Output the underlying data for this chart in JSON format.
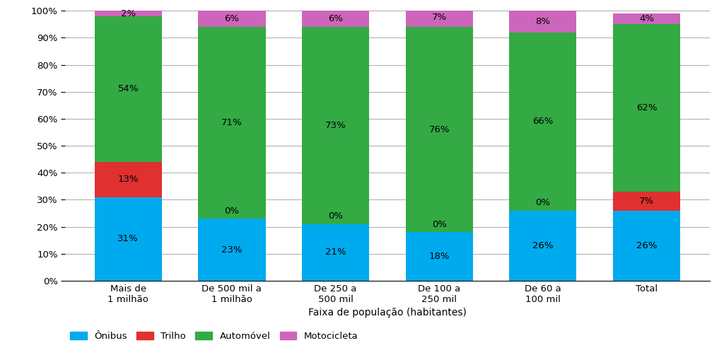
{
  "categories": [
    "Mais de\n1 milhão",
    "De 500 mil a\n1 milhão",
    "De 250 a\n500 mil",
    "De 100 a\n250 mil",
    "De 60 a\n100 mil",
    "Total"
  ],
  "onibus": [
    31,
    23,
    21,
    18,
    26,
    26
  ],
  "trilho": [
    13,
    0,
    0,
    0,
    0,
    7
  ],
  "automovel": [
    54,
    71,
    73,
    76,
    66,
    62
  ],
  "motocicleta": [
    2,
    6,
    6,
    7,
    8,
    4
  ],
  "colors": {
    "onibus": "#00AAEE",
    "trilho": "#E03030",
    "automovel": "#33AA44",
    "motocicleta": "#CC66BB"
  },
  "legend_labels": [
    "Ônibus",
    "Trilho",
    "Automóvel",
    "Motocicleta"
  ],
  "xlabel": "Faixa de população (habitantes)",
  "ylim": [
    0,
    100
  ],
  "yticks": [
    0,
    10,
    20,
    30,
    40,
    50,
    60,
    70,
    80,
    90,
    100
  ],
  "ytick_labels": [
    "0%",
    "10%",
    "20%",
    "30%",
    "40%",
    "50%",
    "60%",
    "70%",
    "80%",
    "90%",
    "100%"
  ],
  "bar_width": 0.65,
  "background_color": "#FFFFFF",
  "grid_color": "#AAAAAA",
  "label_fontsize": 9.5,
  "tick_fontsize": 9.5,
  "xlabel_fontsize": 10
}
